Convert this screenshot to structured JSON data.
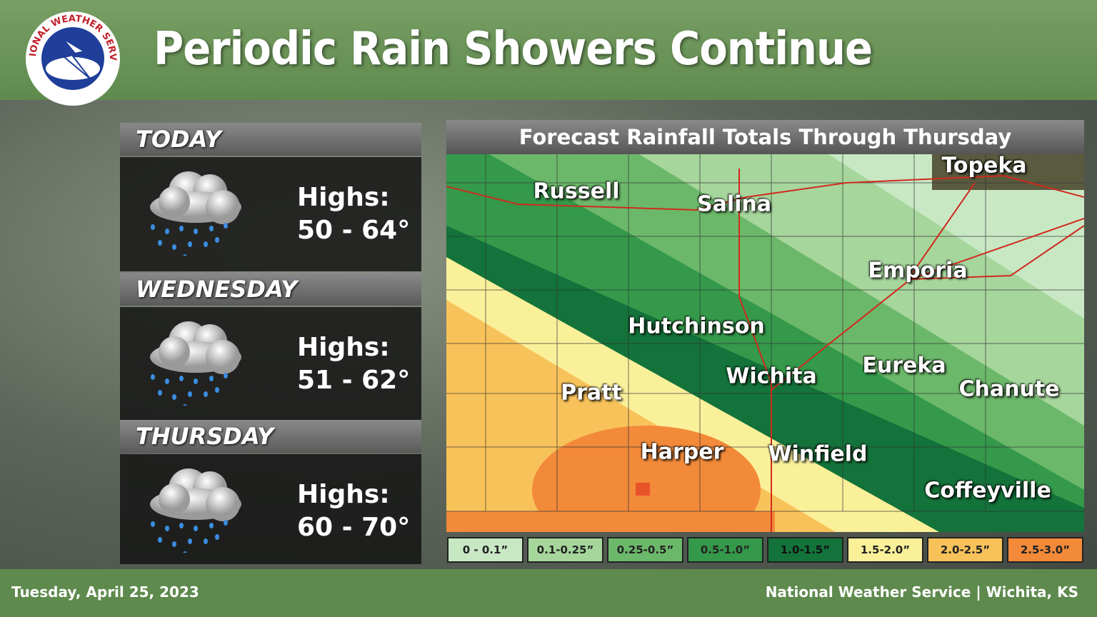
{
  "header": {
    "title": "Periodic Rain Showers Continue",
    "logo_text": "NATIONAL WEATHER SERVICE"
  },
  "forecast": [
    {
      "day": "TODAY",
      "label": "Highs:",
      "range": "50 - 64°"
    },
    {
      "day": "WEDNESDAY",
      "label": "Highs:",
      "range": "51 - 62°"
    },
    {
      "day": "THURSDAY",
      "label": "Highs:",
      "range": "60 - 70°"
    }
  ],
  "map": {
    "title": "Forecast Rainfall Totals Through Thursday",
    "cities": [
      "Topeka",
      "Russell",
      "Salina",
      "Emporia",
      "Hutchinson",
      "Wichita",
      "Eureka",
      "Chanute",
      "Pratt",
      "Harper",
      "Winfield",
      "Coffeyville"
    ],
    "legend": [
      {
        "label": "0 - 0.1”",
        "color": "#c8e8c4"
      },
      {
        "label": "0.1-0.25”",
        "color": "#a6d69c"
      },
      {
        "label": "0.25-0.5”",
        "color": "#6cb86a"
      },
      {
        "label": "0.5-1.0”",
        "color": "#34994a"
      },
      {
        "label": "1.0-1.5”",
        "color": "#13733a"
      },
      {
        "label": "1.5-2.0”",
        "color": "#fbf09a"
      },
      {
        "label": "2.0-2.5”",
        "color": "#f8c25a"
      },
      {
        "label": "2.5-3.0”",
        "color": "#f28a3a"
      }
    ]
  },
  "footer": {
    "date": "Tuesday, April 25, 2023",
    "office": "National Weather Service | Wichita, KS"
  }
}
